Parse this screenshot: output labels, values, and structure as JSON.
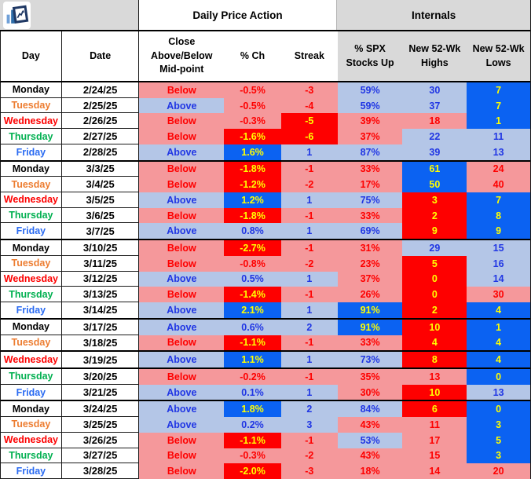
{
  "colors": {
    "pink": "#F5989B",
    "red": "#FE0000",
    "light_blue": "#B4C6E7",
    "bright_blue": "#0B62F2",
    "yellow": "#FFFF00",
    "blue_text": "#2036E4",
    "orange": "#ED7D31",
    "green": "#00B050",
    "friday_blue": "#2A6BF2",
    "header_gray": "#D9D9D9"
  },
  "header": {
    "logo_icon": "chart-logo",
    "group_daily": "Daily Price Action",
    "group_internals": "Internals",
    "columns": [
      "Day",
      "Date",
      "Close\nAbove/Below\nMid-point",
      "% Ch",
      "Streak",
      "% SPX\nStocks Up",
      "New 52-Wk\nHighs",
      "New 52-Wk\nLows"
    ]
  },
  "legend_styles": {
    "P": "red text on pink background",
    "R": "yellow text on bright red background",
    "L": "blue text on light blue background",
    "B": "yellow text on bright blue background"
  },
  "rows": [
    {
      "day": "Monday",
      "dc": "mon",
      "date": "2/24/25",
      "thick": false,
      "cells": [
        [
          "Below",
          "P"
        ],
        [
          "-0.5%",
          "P"
        ],
        [
          "-3",
          "P"
        ],
        [
          "59%",
          "L"
        ],
        [
          "30",
          "L"
        ],
        [
          "7",
          "B"
        ]
      ]
    },
    {
      "day": "Tuesday",
      "dc": "tue",
      "date": "2/25/25",
      "thick": false,
      "cells": [
        [
          "Above",
          "L"
        ],
        [
          "-0.5%",
          "P"
        ],
        [
          "-4",
          "P"
        ],
        [
          "59%",
          "L"
        ],
        [
          "37",
          "L"
        ],
        [
          "7",
          "B"
        ]
      ]
    },
    {
      "day": "Wednesday",
      "dc": "wed",
      "date": "2/26/25",
      "thick": false,
      "cells": [
        [
          "Below",
          "P"
        ],
        [
          "-0.3%",
          "P"
        ],
        [
          "-5",
          "R"
        ],
        [
          "39%",
          "P"
        ],
        [
          "18",
          "P"
        ],
        [
          "1",
          "B"
        ]
      ]
    },
    {
      "day": "Thursday",
      "dc": "thu",
      "date": "2/27/25",
      "thick": false,
      "cells": [
        [
          "Below",
          "P"
        ],
        [
          "-1.6%",
          "R"
        ],
        [
          "-6",
          "R"
        ],
        [
          "37%",
          "P"
        ],
        [
          "22",
          "L"
        ],
        [
          "11",
          "L"
        ]
      ]
    },
    {
      "day": "Friday",
      "dc": "fri",
      "date": "2/28/25",
      "thick": true,
      "cells": [
        [
          "Above",
          "L"
        ],
        [
          "1.6%",
          "B"
        ],
        [
          "1",
          "L"
        ],
        [
          "87%",
          "L"
        ],
        [
          "39",
          "L"
        ],
        [
          "13",
          "L"
        ]
      ]
    },
    {
      "day": "Monday",
      "dc": "mon",
      "date": "3/3/25",
      "thick": false,
      "cells": [
        [
          "Below",
          "P"
        ],
        [
          "-1.8%",
          "R"
        ],
        [
          "-1",
          "P"
        ],
        [
          "33%",
          "P"
        ],
        [
          "61",
          "B"
        ],
        [
          "24",
          "P"
        ]
      ]
    },
    {
      "day": "Tuesday",
      "dc": "tue",
      "date": "3/4/25",
      "thick": false,
      "cells": [
        [
          "Below",
          "P"
        ],
        [
          "-1.2%",
          "R"
        ],
        [
          "-2",
          "P"
        ],
        [
          "17%",
          "P"
        ],
        [
          "50",
          "B"
        ],
        [
          "40",
          "P"
        ]
      ]
    },
    {
      "day": "Wednesday",
      "dc": "wed",
      "date": "3/5/25",
      "thick": false,
      "cells": [
        [
          "Above",
          "L"
        ],
        [
          "1.2%",
          "B"
        ],
        [
          "1",
          "L"
        ],
        [
          "75%",
          "L"
        ],
        [
          "3",
          "R"
        ],
        [
          "7",
          "B"
        ]
      ]
    },
    {
      "day": "Thursday",
      "dc": "thu",
      "date": "3/6/25",
      "thick": false,
      "cells": [
        [
          "Below",
          "P"
        ],
        [
          "-1.8%",
          "R"
        ],
        [
          "-1",
          "P"
        ],
        [
          "33%",
          "P"
        ],
        [
          "2",
          "R"
        ],
        [
          "8",
          "B"
        ]
      ]
    },
    {
      "day": "Friday",
      "dc": "fri",
      "date": "3/7/25",
      "thick": true,
      "cells": [
        [
          "Above",
          "L"
        ],
        [
          "0.8%",
          "L"
        ],
        [
          "1",
          "L"
        ],
        [
          "69%",
          "L"
        ],
        [
          "9",
          "R"
        ],
        [
          "9",
          "B"
        ]
      ]
    },
    {
      "day": "Monday",
      "dc": "mon",
      "date": "3/10/25",
      "thick": false,
      "cells": [
        [
          "Below",
          "P"
        ],
        [
          "-2.7%",
          "R"
        ],
        [
          "-1",
          "P"
        ],
        [
          "31%",
          "P"
        ],
        [
          "29",
          "L"
        ],
        [
          "15",
          "L"
        ]
      ]
    },
    {
      "day": "Tuesday",
      "dc": "tue",
      "date": "3/11/25",
      "thick": false,
      "cells": [
        [
          "Below",
          "P"
        ],
        [
          "-0.8%",
          "P"
        ],
        [
          "-2",
          "P"
        ],
        [
          "23%",
          "P"
        ],
        [
          "5",
          "R"
        ],
        [
          "16",
          "L"
        ]
      ]
    },
    {
      "day": "Wednesday",
      "dc": "wed",
      "date": "3/12/25",
      "thick": false,
      "cells": [
        [
          "Above",
          "L"
        ],
        [
          "0.5%",
          "L"
        ],
        [
          "1",
          "L"
        ],
        [
          "37%",
          "P"
        ],
        [
          "0",
          "R"
        ],
        [
          "14",
          "L"
        ]
      ]
    },
    {
      "day": "Thursday",
      "dc": "thu",
      "date": "3/13/25",
      "thick": false,
      "cells": [
        [
          "Below",
          "P"
        ],
        [
          "-1.4%",
          "R"
        ],
        [
          "-1",
          "P"
        ],
        [
          "26%",
          "P"
        ],
        [
          "0",
          "R"
        ],
        [
          "30",
          "P"
        ]
      ]
    },
    {
      "day": "Friday",
      "dc": "fri",
      "date": "3/14/25",
      "thick": true,
      "cells": [
        [
          "Above",
          "L"
        ],
        [
          "2.1%",
          "B"
        ],
        [
          "1",
          "L"
        ],
        [
          "91%",
          "B"
        ],
        [
          "2",
          "R"
        ],
        [
          "4",
          "B"
        ]
      ]
    },
    {
      "day": "Monday",
      "dc": "mon",
      "date": "3/17/25",
      "thick": false,
      "cells": [
        [
          "Above",
          "L"
        ],
        [
          "0.6%",
          "L"
        ],
        [
          "2",
          "L"
        ],
        [
          "91%",
          "B"
        ],
        [
          "10",
          "R"
        ],
        [
          "1",
          "B"
        ]
      ]
    },
    {
      "day": "Tuesday",
      "dc": "tue",
      "date": "3/18/25",
      "thick": true,
      "cells": [
        [
          "Below",
          "P"
        ],
        [
          "-1.1%",
          "R"
        ],
        [
          "-1",
          "P"
        ],
        [
          "33%",
          "P"
        ],
        [
          "4",
          "R"
        ],
        [
          "4",
          "B"
        ]
      ]
    },
    {
      "day": "Wednesday",
      "dc": "wed",
      "date": "3/19/25",
      "thick": true,
      "cells": [
        [
          "Above",
          "L"
        ],
        [
          "1.1%",
          "B"
        ],
        [
          "1",
          "L"
        ],
        [
          "73%",
          "L"
        ],
        [
          "8",
          "R"
        ],
        [
          "4",
          "B"
        ]
      ]
    },
    {
      "day": "Thursday",
      "dc": "thu",
      "date": "3/20/25",
      "thick": false,
      "cells": [
        [
          "Below",
          "P"
        ],
        [
          "-0.2%",
          "P"
        ],
        [
          "-1",
          "P"
        ],
        [
          "35%",
          "P"
        ],
        [
          "13",
          "P"
        ],
        [
          "0",
          "B"
        ]
      ]
    },
    {
      "day": "Friday",
      "dc": "fri",
      "date": "3/21/25",
      "thick": true,
      "cells": [
        [
          "Above",
          "L"
        ],
        [
          "0.1%",
          "L"
        ],
        [
          "1",
          "L"
        ],
        [
          "30%",
          "P"
        ],
        [
          "10",
          "R"
        ],
        [
          "13",
          "L"
        ]
      ]
    },
    {
      "day": "Monday",
      "dc": "mon",
      "date": "3/24/25",
      "thick": false,
      "cells": [
        [
          "Above",
          "L"
        ],
        [
          "1.8%",
          "B"
        ],
        [
          "2",
          "L"
        ],
        [
          "84%",
          "L"
        ],
        [
          "6",
          "R"
        ],
        [
          "0",
          "B"
        ]
      ]
    },
    {
      "day": "Tuesday",
      "dc": "tue",
      "date": "3/25/25",
      "thick": false,
      "cells": [
        [
          "Above",
          "L"
        ],
        [
          "0.2%",
          "L"
        ],
        [
          "3",
          "L"
        ],
        [
          "43%",
          "P"
        ],
        [
          "11",
          "P"
        ],
        [
          "3",
          "B"
        ]
      ]
    },
    {
      "day": "Wednesday",
      "dc": "wed",
      "date": "3/26/25",
      "thick": false,
      "cells": [
        [
          "Below",
          "P"
        ],
        [
          "-1.1%",
          "R"
        ],
        [
          "-1",
          "P"
        ],
        [
          "53%",
          "L"
        ],
        [
          "17",
          "P"
        ],
        [
          "5",
          "B"
        ]
      ]
    },
    {
      "day": "Thursday",
      "dc": "thu",
      "date": "3/27/25",
      "thick": false,
      "cells": [
        [
          "Below",
          "P"
        ],
        [
          "-0.3%",
          "P"
        ],
        [
          "-2",
          "P"
        ],
        [
          "43%",
          "P"
        ],
        [
          "15",
          "P"
        ],
        [
          "3",
          "B"
        ]
      ]
    },
    {
      "day": "Friday",
      "dc": "fri",
      "date": "3/28/25",
      "thick": false,
      "cells": [
        [
          "Below",
          "P"
        ],
        [
          "-2.0%",
          "R"
        ],
        [
          "-3",
          "P"
        ],
        [
          "18%",
          "P"
        ],
        [
          "14",
          "P"
        ],
        [
          "20",
          "P"
        ]
      ]
    }
  ]
}
